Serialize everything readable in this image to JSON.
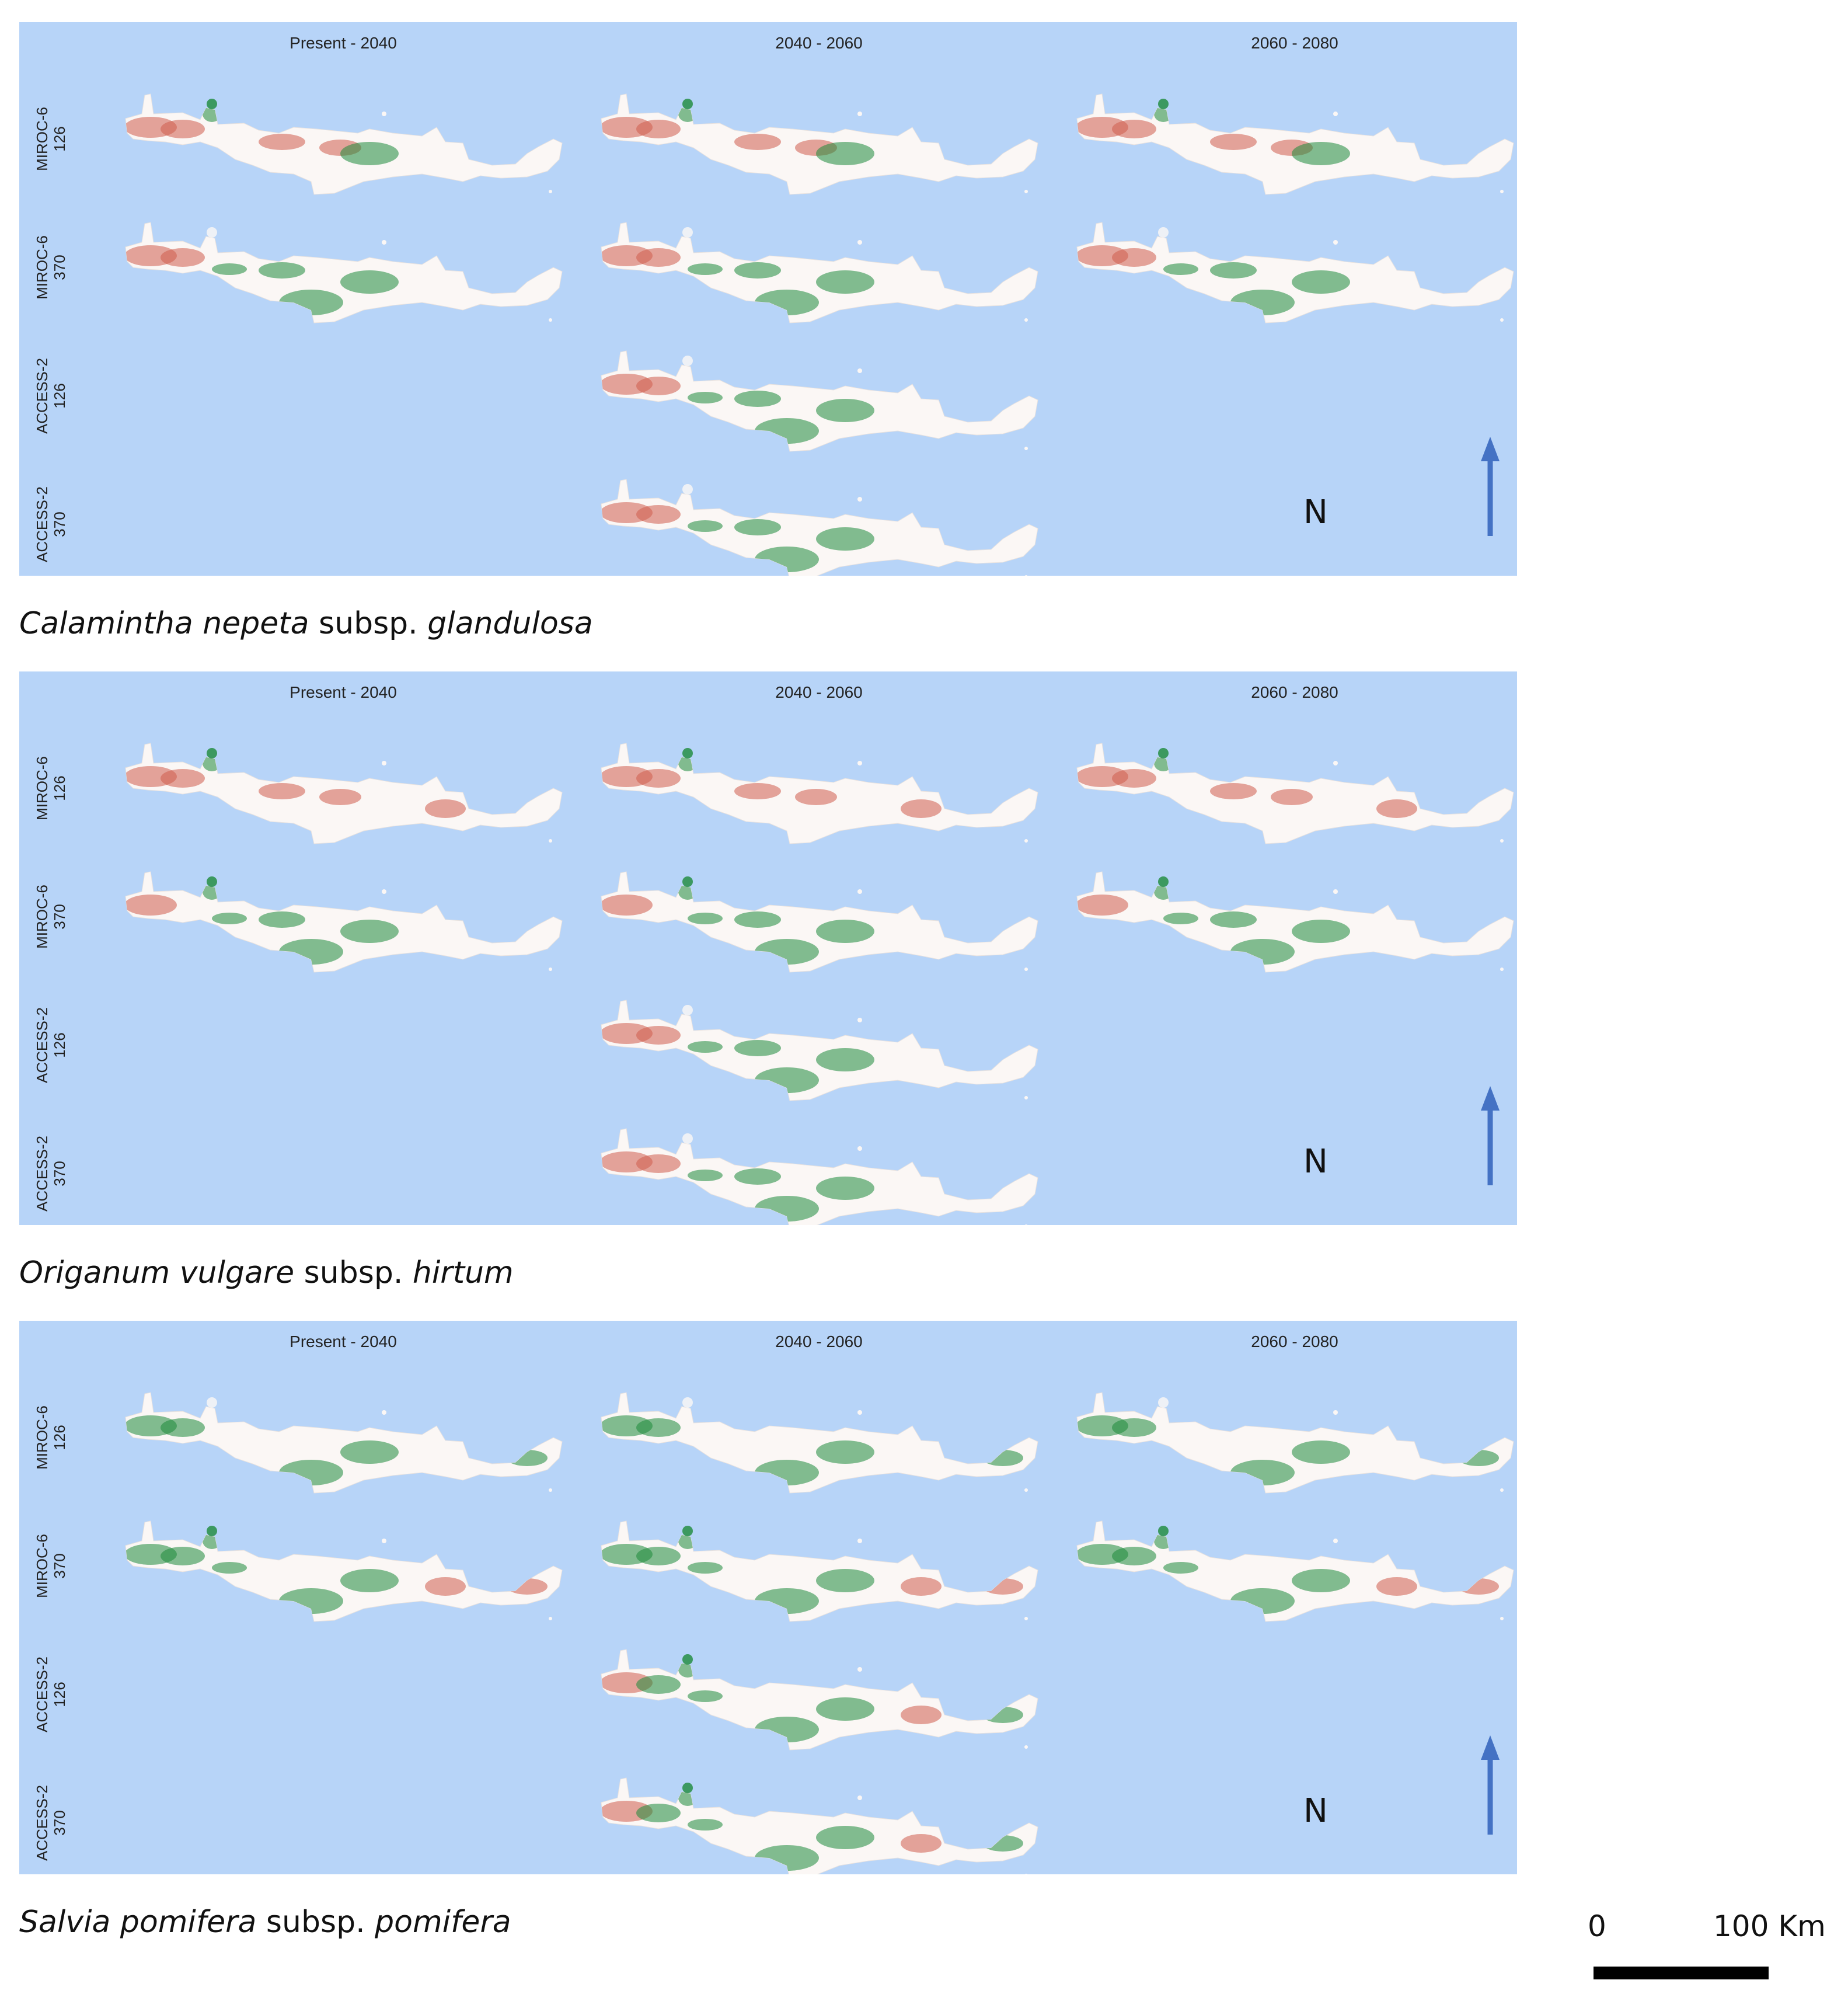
{
  "panels": [
    {
      "species": "Calamintha nepeta",
      "subsp_word": "subsp.",
      "subspecies": "glandulosa",
      "palette": [
        [
          "r",
          "r",
          "g",
          "w",
          "r",
          "r",
          "w",
          "g",
          "w",
          "w"
        ],
        [
          "r",
          "r",
          "w",
          "g",
          "g",
          "w",
          "g",
          "g",
          "w",
          "w"
        ],
        [
          "r",
          "r",
          "w",
          "g",
          "g",
          "w",
          "g",
          "g",
          "w",
          "w"
        ]
      ]
    },
    {
      "species": "Origanum vulgare",
      "subsp_word": "subsp.",
      "subspecies": "hirtum",
      "palette": [
        [
          "r",
          "r",
          "g",
          "w",
          "r",
          "r",
          "w",
          "w",
          "r",
          "w"
        ],
        [
          "r",
          "w",
          "g",
          "g",
          "g",
          "w",
          "g",
          "g",
          "w",
          "w"
        ],
        [
          "r",
          "r",
          "w",
          "g",
          "g",
          "w",
          "g",
          "g",
          "w",
          "w"
        ]
      ]
    },
    {
      "species": "Salvia pomifera",
      "subsp_word": "subsp.",
      "subspecies": "pomifera",
      "palette": [
        [
          "g",
          "g",
          "w",
          "w",
          "w",
          "w",
          "g",
          "g",
          "w",
          "g"
        ],
        [
          "g",
          "g",
          "g",
          "g",
          "w",
          "w",
          "g",
          "g",
          "r",
          "r"
        ],
        [
          "r",
          "g",
          "g",
          "g",
          "w",
          "w",
          "g",
          "g",
          "r",
          "g"
        ]
      ]
    }
  ],
  "column_titles": [
    "Present - 2040",
    "2040 - 2060",
    "2060 - 2080"
  ],
  "row_labels": [
    {
      "model": "MIROC-6",
      "scenario": "126"
    },
    {
      "model": "MIROC-6",
      "scenario": "370"
    },
    {
      "model": "ACCESS-2",
      "scenario": "126"
    },
    {
      "model": "ACCESS-2",
      "scenario": "370"
    }
  ],
  "grid_cells": [
    {
      "row": 0,
      "col": 0
    },
    {
      "row": 0,
      "col": 1
    },
    {
      "row": 0,
      "col": 2
    },
    {
      "row": 1,
      "col": 0
    },
    {
      "row": 1,
      "col": 1
    },
    {
      "row": 1,
      "col": 2
    },
    {
      "row": 2,
      "col": 1
    },
    {
      "row": 3,
      "col": 1
    }
  ],
  "north_arrow_label": "N",
  "scale": {
    "start_label": "0",
    "end_label": "100 Km"
  },
  "colors": {
    "sea": "#b7d4f8",
    "land": "#fbf7f5",
    "loss": "#cf5d4c",
    "gain": "#1d8a3a",
    "arrow": "#4472c4"
  }
}
